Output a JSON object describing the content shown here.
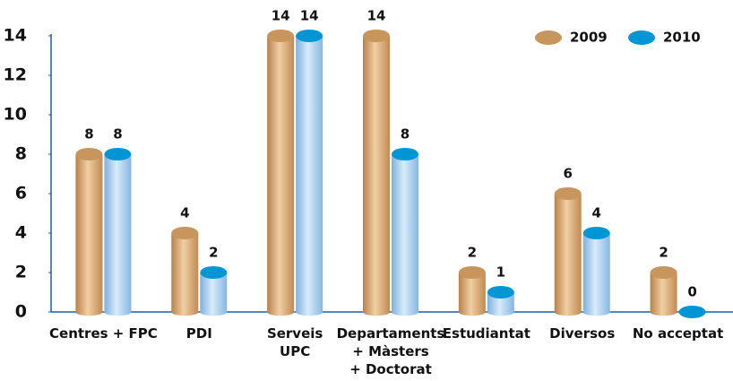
{
  "chart_data": {
    "type": "bar",
    "categories": [
      [
        "Centres + FPC"
      ],
      [
        "PDI"
      ],
      [
        "Serveis",
        "UPC"
      ],
      [
        "Departaments",
        "+ Màsters",
        "+ Doctorat"
      ],
      [
        "Estudiantat"
      ],
      [
        "Diversos"
      ],
      [
        "No acceptat"
      ]
    ],
    "series": [
      {
        "name": "2009",
        "color": "#c8955c",
        "values": [
          8,
          4,
          14,
          14,
          2,
          6,
          2
        ]
      },
      {
        "name": "2010",
        "color": "#0096d6",
        "values": [
          8,
          2,
          14,
          8,
          1,
          4,
          0
        ]
      }
    ],
    "ylim": [
      0,
      14
    ],
    "yticks": [
      0,
      2,
      4,
      6,
      8,
      10,
      12,
      14
    ],
    "grid": false,
    "legend": "top-right"
  }
}
